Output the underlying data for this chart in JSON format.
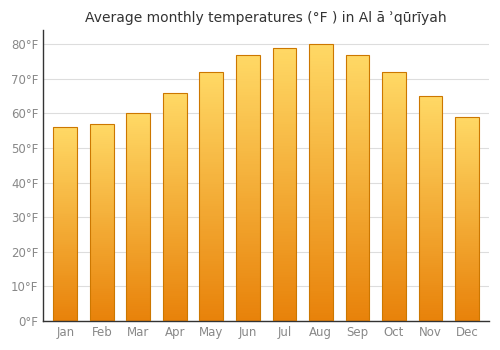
{
  "title": "Average monthly temperatures (°F ) in Al ā ʾqūrīyah",
  "months": [
    "Jan",
    "Feb",
    "Mar",
    "Apr",
    "May",
    "Jun",
    "Jul",
    "Aug",
    "Sep",
    "Oct",
    "Nov",
    "Dec"
  ],
  "values": [
    56,
    57,
    60,
    66,
    72,
    77,
    79,
    80,
    77,
    72,
    65,
    59
  ],
  "bar_color_top": "#FFD966",
  "bar_color_bottom": "#E8820A",
  "bar_edge_color": "#CC7700",
  "background_color": "#FFFFFF",
  "plot_bg_color": "#FFFFFF",
  "grid_color": "#DDDDDD",
  "yticks": [
    0,
    10,
    20,
    30,
    40,
    50,
    60,
    70,
    80
  ],
  "ytick_labels": [
    "0°F",
    "10°F",
    "20°F",
    "30°F",
    "40°F",
    "50°F",
    "60°F",
    "70°F",
    "80°F"
  ],
  "ylim": [
    0,
    84
  ],
  "title_fontsize": 10,
  "tick_fontsize": 8.5,
  "tick_color": "#888888",
  "spine_color": "#333333"
}
